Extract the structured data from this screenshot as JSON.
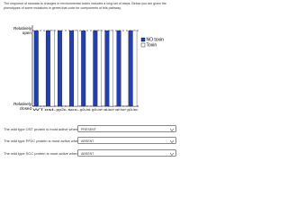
{
  "intro": "The response of stomata to changes in environmental toxins includes a long set of steps. Below you are given the phenotypes of some mutations in genes that code for components of this pathway.",
  "chart_data": {
    "type": "bar",
    "categories": [
      "WT",
      "ost-",
      "pp2c-",
      "scc-",
      "pp2c-/ost-",
      "pp2c-/ost+",
      "ost-/scc+",
      "ost+/scc+",
      "pp2c-/scc-"
    ],
    "series": [
      {
        "name": "NO toxin",
        "color": "#1f3fbf",
        "values": [
          1,
          1,
          1,
          1,
          1,
          1,
          1,
          1,
          1
        ]
      },
      {
        "name": "Toxin",
        "color": "#ffffff",
        "values": [
          0,
          1,
          0,
          1,
          0,
          1,
          1,
          0,
          1
        ]
      }
    ],
    "ylim": [
      0,
      1
    ],
    "yticks": [
      {
        "value": 0,
        "label": "Relatively closed"
      },
      {
        "value": 1,
        "label": "Relatively open"
      }
    ],
    "grid": true,
    "legend": "right"
  },
  "questions": [
    {
      "text": "The wild type OST protein is most active when toxin is",
      "answer": "PRESENT"
    },
    {
      "text": "The wild type PP2C protein is most active when toxin is",
      "answer": "ABSENT"
    },
    {
      "text": "The wild type SCC protein is most active when toxin is",
      "answer": "ABSENT"
    }
  ]
}
